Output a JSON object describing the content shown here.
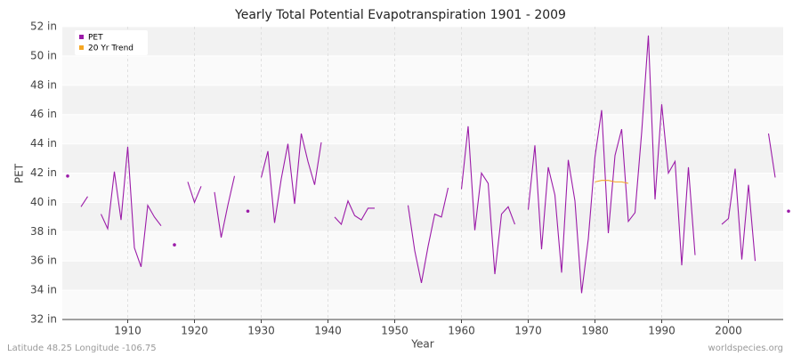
{
  "chart_data": {
    "type": "line",
    "title": "Yearly Total Potential Evapotranspiration 1901 - 2009",
    "x_label": "Year",
    "y_label": "PET",
    "footer_left": "Latitude 48.25 Longitude -106.75",
    "footer_right": "worldspecies.org",
    "xlim": [
      1901,
      2009
    ],
    "xticks": [
      1910,
      1920,
      1930,
      1940,
      1950,
      1960,
      1970,
      1980,
      1990,
      2000
    ],
    "ylim": [
      32,
      52
    ],
    "yticks": [
      {
        "value": 32,
        "label": "32 in"
      },
      {
        "value": 34,
        "label": "34 in"
      },
      {
        "value": 36,
        "label": "36 in"
      },
      {
        "value": 38,
        "label": "38 in"
      },
      {
        "value": 40,
        "label": "40 in"
      },
      {
        "value": 42,
        "label": "42 in"
      },
      {
        "value": 44,
        "label": "44 in"
      },
      {
        "value": 46,
        "label": "46 in"
      },
      {
        "value": 48,
        "label": "48 in"
      },
      {
        "value": 50,
        "label": "50 in"
      },
      {
        "value": 52,
        "label": "52 in"
      }
    ],
    "grid": true,
    "legend": "top-left",
    "series": [
      {
        "name": "PET",
        "color": "#9b1ba8",
        "x": [
          1901,
          1902,
          1903,
          1904,
          1905,
          1906,
          1907,
          1908,
          1909,
          1910,
          1911,
          1912,
          1913,
          1914,
          1915,
          1916,
          1917,
          1918,
          1919,
          1920,
          1921,
          1922,
          1923,
          1924,
          1925,
          1926,
          1927,
          1928,
          1929,
          1930,
          1931,
          1932,
          1933,
          1934,
          1935,
          1936,
          1937,
          1938,
          1939,
          1940,
          1941,
          1942,
          1943,
          1944,
          1945,
          1946,
          1947,
          1948,
          1949,
          1950,
          1951,
          1952,
          1953,
          1954,
          1955,
          1956,
          1957,
          1958,
          1959,
          1960,
          1961,
          1962,
          1963,
          1964,
          1965,
          1966,
          1967,
          1968,
          1969,
          1970,
          1971,
          1972,
          1973,
          1974,
          1975,
          1976,
          1977,
          1978,
          1979,
          1980,
          1981,
          1982,
          1983,
          1984,
          1985,
          1986,
          1987,
          1988,
          1989,
          1990,
          1991,
          1992,
          1993,
          1994,
          1995,
          1996,
          1997,
          1998,
          1999,
          2000,
          2001,
          2002,
          2003,
          2004,
          2005,
          2006,
          2007,
          2008,
          2009
        ],
        "values": [
          41.8,
          null,
          39.7,
          40.4,
          null,
          39.2,
          38.2,
          42.1,
          38.8,
          43.8,
          36.9,
          35.6,
          39.8,
          39.0,
          38.4,
          null,
          37.1,
          null,
          41.4,
          40.0,
          41.1,
          null,
          40.7,
          37.6,
          39.8,
          41.8,
          null,
          39.4,
          null,
          41.7,
          43.5,
          38.6,
          41.6,
          44.0,
          39.9,
          44.7,
          42.8,
          41.2,
          44.1,
          null,
          39.0,
          38.5,
          40.1,
          39.1,
          38.8,
          39.6,
          39.6,
          null,
          null,
          null,
          null,
          39.8,
          36.7,
          34.5,
          37.0,
          39.2,
          39.0,
          41.0,
          null,
          40.9,
          45.2,
          38.1,
          42.0,
          41.3,
          35.1,
          39.2,
          39.7,
          38.5,
          null,
          39.5,
          43.9,
          36.8,
          42.4,
          40.5,
          35.2,
          42.9,
          40.1,
          33.8,
          37.5,
          43.1,
          46.3,
          37.9,
          43.2,
          45.0,
          38.7,
          39.3,
          44.8,
          51.4,
          40.2,
          46.7,
          42.0,
          42.8,
          35.7,
          42.4,
          36.4,
          null,
          null,
          null,
          38.5,
          38.9,
          42.3,
          36.1,
          41.2,
          36.0,
          null,
          44.7,
          41.7,
          null,
          39.4
        ]
      },
      {
        "name": "20 Yr Trend",
        "color": "#f5a623",
        "x": [
          1980,
          1981,
          1982,
          1983,
          1984,
          1985
        ],
        "values": [
          41.4,
          41.5,
          41.5,
          41.4,
          41.4,
          41.3
        ]
      }
    ]
  }
}
